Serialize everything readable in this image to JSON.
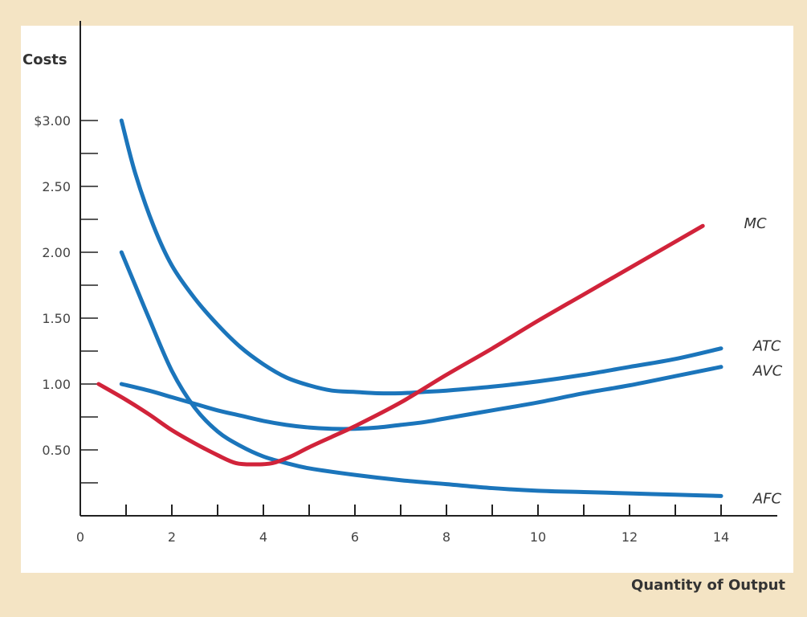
{
  "chart_data": {
    "type": "line",
    "title": "",
    "ylabel": "Costs",
    "xlabel": "Quantity of Output",
    "xlim": [
      0,
      15
    ],
    "ylim": [
      0,
      3.5
    ],
    "x_ticks": [
      0,
      2,
      4,
      6,
      8,
      10,
      12,
      14
    ],
    "x_ticks_minor": [
      1,
      3,
      5,
      7,
      9,
      11,
      13
    ],
    "x_tick_labels": [
      "0",
      "2",
      "4",
      "6",
      "8",
      "10",
      "12",
      "14"
    ],
    "y_ticks": [
      0.5,
      1.0,
      1.5,
      2.0,
      2.5,
      3.0
    ],
    "y_ticks_minor": [
      0.25,
      0.75,
      1.25,
      1.75,
      2.25,
      2.75
    ],
    "y_tick_labels": [
      "0.50",
      "1.00",
      "1.50",
      "2.00",
      "2.50",
      "$3.00"
    ],
    "grid": false,
    "series": [
      {
        "name": "ATC",
        "color": "#1b75bb",
        "points": [
          [
            0.9,
            3.0
          ],
          [
            1.2,
            2.6
          ],
          [
            1.6,
            2.2
          ],
          [
            2,
            1.9
          ],
          [
            2.5,
            1.65
          ],
          [
            3,
            1.45
          ],
          [
            3.5,
            1.28
          ],
          [
            4,
            1.15
          ],
          [
            4.5,
            1.05
          ],
          [
            5,
            0.99
          ],
          [
            5.5,
            0.95
          ],
          [
            6,
            0.94
          ],
          [
            6.5,
            0.93
          ],
          [
            7,
            0.93
          ],
          [
            7.5,
            0.94
          ],
          [
            8,
            0.95
          ],
          [
            9,
            0.98
          ],
          [
            10,
            1.02
          ],
          [
            11,
            1.07
          ],
          [
            12,
            1.13
          ],
          [
            13,
            1.19
          ],
          [
            14,
            1.27
          ]
        ]
      },
      {
        "name": "AVC",
        "color": "#1b75bb",
        "points": [
          [
            0.9,
            1.0
          ],
          [
            1.5,
            0.95
          ],
          [
            2,
            0.9
          ],
          [
            2.5,
            0.85
          ],
          [
            3,
            0.8
          ],
          [
            3.5,
            0.76
          ],
          [
            4,
            0.72
          ],
          [
            4.5,
            0.69
          ],
          [
            5,
            0.67
          ],
          [
            5.5,
            0.66
          ],
          [
            6,
            0.66
          ],
          [
            6.5,
            0.67
          ],
          [
            7,
            0.69
          ],
          [
            7.5,
            0.71
          ],
          [
            8,
            0.74
          ],
          [
            9,
            0.8
          ],
          [
            10,
            0.86
          ],
          [
            11,
            0.93
          ],
          [
            12,
            0.99
          ],
          [
            13,
            1.06
          ],
          [
            14,
            1.13
          ]
        ]
      },
      {
        "name": "AFC",
        "color": "#1b75bb",
        "points": [
          [
            0.9,
            2.0
          ],
          [
            1.2,
            1.75
          ],
          [
            1.5,
            1.5
          ],
          [
            2,
            1.1
          ],
          [
            2.5,
            0.82
          ],
          [
            3,
            0.64
          ],
          [
            3.5,
            0.53
          ],
          [
            4,
            0.45
          ],
          [
            4.5,
            0.4
          ],
          [
            5,
            0.36
          ],
          [
            6,
            0.31
          ],
          [
            7,
            0.27
          ],
          [
            8,
            0.24
          ],
          [
            9,
            0.21
          ],
          [
            10,
            0.19
          ],
          [
            11,
            0.18
          ],
          [
            12,
            0.17
          ],
          [
            13,
            0.16
          ],
          [
            14,
            0.15
          ]
        ]
      },
      {
        "name": "MC",
        "color": "#d1233a",
        "points": [
          [
            0.4,
            1.0
          ],
          [
            1,
            0.88
          ],
          [
            1.5,
            0.77
          ],
          [
            2,
            0.65
          ],
          [
            2.5,
            0.55
          ],
          [
            3,
            0.46
          ],
          [
            3.4,
            0.4
          ],
          [
            3.8,
            0.39
          ],
          [
            4.2,
            0.4
          ],
          [
            4.6,
            0.45
          ],
          [
            5,
            0.52
          ],
          [
            5.5,
            0.6
          ],
          [
            6,
            0.68
          ],
          [
            7,
            0.86
          ],
          [
            8,
            1.07
          ],
          [
            9,
            1.27
          ],
          [
            10,
            1.48
          ],
          [
            11,
            1.68
          ],
          [
            12,
            1.88
          ],
          [
            13,
            2.08
          ],
          [
            13.6,
            2.2
          ]
        ]
      }
    ],
    "curve_labels": [
      {
        "text": "MC",
        "x": 14.5,
        "y": 2.22
      },
      {
        "text": "ATC",
        "x": 14.7,
        "y": 1.29
      },
      {
        "text": "AVC",
        "x": 14.7,
        "y": 1.1
      },
      {
        "text": "AFC",
        "x": 14.7,
        "y": 0.13
      }
    ]
  }
}
